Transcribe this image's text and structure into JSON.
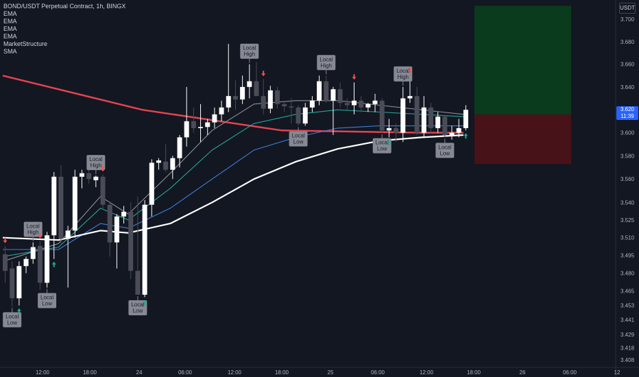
{
  "legend": {
    "title": "BOND/USDT Perpetual Contract, 1h, BINGX",
    "indicators": [
      "EMA",
      "EMA",
      "EMA",
      "EMA",
      "MarketStructure",
      "SMA"
    ]
  },
  "price_axis": {
    "unit": "USDT",
    "last_price": "3.620",
    "countdown": "11:39"
  },
  "colors": {
    "background": "#131722",
    "bull_candle": "#ffffff",
    "bear_candle": "#4a4c57",
    "sma": "#e5434f",
    "ema_fast": "#8f9199",
    "ema_mid": "#26a69a",
    "ema_slow": "#3f7fd6",
    "ema_slowest": "#ffffff",
    "take_profit_zone": "#0a3d1c",
    "stop_loss_zone": "#4a1218",
    "arrow_up": "#26a69a",
    "arrow_down": "#ef5350",
    "label_bg": "#868993"
  },
  "chart_data": {
    "type": "candlestick",
    "title": "BOND/USDT Perpetual Contract, 1h, BINGX",
    "y_ticks": [
      "3.700",
      "3.680",
      "3.660",
      "3.640",
      "3.620",
      "3.600",
      "3.580",
      "3.560",
      "3.540",
      "3.525",
      "3.510",
      "3.495",
      "3.480",
      "3.465",
      "3.453",
      "3.441",
      "3.429",
      "3.418",
      "3.408"
    ],
    "x_ticks": [
      "12:00",
      "18:00",
      "24",
      "06:00",
      "12:00",
      "18:00",
      "25",
      "06:00",
      "12:00",
      "18:00",
      "26",
      "06:00",
      "12"
    ],
    "y_scale": "log",
    "grid": false,
    "candles": [
      {
        "o": 3.496,
        "h": 3.503,
        "l": 3.472,
        "c": 3.482
      },
      {
        "o": 3.484,
        "h": 3.49,
        "l": 3.452,
        "c": 3.459
      },
      {
        "o": 3.459,
        "h": 3.49,
        "l": 3.453,
        "c": 3.486
      },
      {
        "o": 3.486,
        "h": 3.494,
        "l": 3.48,
        "c": 3.492
      },
      {
        "o": 3.492,
        "h": 3.506,
        "l": 3.488,
        "c": 3.502
      },
      {
        "o": 3.503,
        "h": 3.507,
        "l": 3.466,
        "c": 3.472
      },
      {
        "o": 3.472,
        "h": 3.515,
        "l": 3.468,
        "c": 3.512
      },
      {
        "o": 3.512,
        "h": 3.566,
        "l": 3.492,
        "c": 3.562
      },
      {
        "o": 3.562,
        "h": 3.572,
        "l": 3.505,
        "c": 3.509
      },
      {
        "o": 3.509,
        "h": 3.52,
        "l": 3.468,
        "c": 3.516
      },
      {
        "o": 3.516,
        "h": 3.568,
        "l": 3.51,
        "c": 3.562
      },
      {
        "o": 3.562,
        "h": 3.568,
        "l": 3.552,
        "c": 3.565
      },
      {
        "o": 3.565,
        "h": 3.572,
        "l": 3.556,
        "c": 3.56
      },
      {
        "o": 3.559,
        "h": 3.563,
        "l": 3.553,
        "c": 3.562
      },
      {
        "o": 3.562,
        "h": 3.564,
        "l": 3.534,
        "c": 3.538
      },
      {
        "o": 3.538,
        "h": 3.54,
        "l": 3.494,
        "c": 3.506
      },
      {
        "o": 3.506,
        "h": 3.53,
        "l": 3.484,
        "c": 3.528
      },
      {
        "o": 3.528,
        "h": 3.537,
        "l": 3.522,
        "c": 3.532
      },
      {
        "o": 3.532,
        "h": 3.54,
        "l": 3.475,
        "c": 3.482
      },
      {
        "o": 3.482,
        "h": 3.545,
        "l": 3.462,
        "c": 3.462
      },
      {
        "o": 3.462,
        "h": 3.542,
        "l": 3.46,
        "c": 3.538
      },
      {
        "o": 3.538,
        "h": 3.577,
        "l": 3.528,
        "c": 3.574
      },
      {
        "o": 3.574,
        "h": 3.578,
        "l": 3.568,
        "c": 3.576
      },
      {
        "o": 3.575,
        "h": 3.59,
        "l": 3.566,
        "c": 3.568
      },
      {
        "o": 3.568,
        "h": 3.58,
        "l": 3.56,
        "c": 3.578
      },
      {
        "o": 3.578,
        "h": 3.598,
        "l": 3.57,
        "c": 3.596
      },
      {
        "o": 3.596,
        "h": 3.64,
        "l": 3.588,
        "c": 3.61
      },
      {
        "o": 3.61,
        "h": 3.622,
        "l": 3.6,
        "c": 3.604
      },
      {
        "o": 3.604,
        "h": 3.625,
        "l": 3.592,
        "c": 3.605
      },
      {
        "o": 3.605,
        "h": 3.612,
        "l": 3.598,
        "c": 3.609
      },
      {
        "o": 3.609,
        "h": 3.622,
        "l": 3.604,
        "c": 3.616
      },
      {
        "o": 3.616,
        "h": 3.628,
        "l": 3.61,
        "c": 3.622
      },
      {
        "o": 3.622,
        "h": 3.678,
        "l": 3.618,
        "c": 3.632
      },
      {
        "o": 3.632,
        "h": 3.646,
        "l": 3.62,
        "c": 3.629
      },
      {
        "o": 3.629,
        "h": 3.65,
        "l": 3.625,
        "c": 3.64
      },
      {
        "o": 3.64,
        "h": 3.66,
        "l": 3.63,
        "c": 3.645
      },
      {
        "o": 3.645,
        "h": 3.662,
        "l": 3.632,
        "c": 3.632
      },
      {
        "o": 3.632,
        "h": 3.647,
        "l": 3.616,
        "c": 3.621
      },
      {
        "o": 3.621,
        "h": 3.641,
        "l": 3.617,
        "c": 3.637
      },
      {
        "o": 3.637,
        "h": 3.64,
        "l": 3.621,
        "c": 3.625
      },
      {
        "o": 3.625,
        "h": 3.628,
        "l": 3.618,
        "c": 3.623
      },
      {
        "o": 3.623,
        "h": 3.63,
        "l": 3.608,
        "c": 3.622
      },
      {
        "o": 3.622,
        "h": 3.624,
        "l": 3.606,
        "c": 3.608
      },
      {
        "o": 3.608,
        "h": 3.626,
        "l": 3.606,
        "c": 3.622
      },
      {
        "o": 3.622,
        "h": 3.632,
        "l": 3.618,
        "c": 3.628
      },
      {
        "o": 3.628,
        "h": 3.65,
        "l": 3.624,
        "c": 3.645
      },
      {
        "o": 3.645,
        "h": 3.65,
        "l": 3.626,
        "c": 3.628
      },
      {
        "o": 3.628,
        "h": 3.64,
        "l": 3.598,
        "c": 3.638
      },
      {
        "o": 3.638,
        "h": 3.644,
        "l": 3.622,
        "c": 3.626
      },
      {
        "o": 3.626,
        "h": 3.63,
        "l": 3.62,
        "c": 3.624
      },
      {
        "o": 3.624,
        "h": 3.644,
        "l": 3.616,
        "c": 3.628
      },
      {
        "o": 3.628,
        "h": 3.632,
        "l": 3.618,
        "c": 3.622
      },
      {
        "o": 3.622,
        "h": 3.626,
        "l": 3.618,
        "c": 3.625
      },
      {
        "o": 3.625,
        "h": 3.634,
        "l": 3.618,
        "c": 3.628
      },
      {
        "o": 3.628,
        "h": 3.63,
        "l": 3.6,
        "c": 3.602
      },
      {
        "o": 3.602,
        "h": 3.612,
        "l": 3.596,
        "c": 3.604
      },
      {
        "o": 3.604,
        "h": 3.608,
        "l": 3.592,
        "c": 3.6
      },
      {
        "o": 3.6,
        "h": 3.64,
        "l": 3.592,
        "c": 3.63
      },
      {
        "o": 3.63,
        "h": 3.65,
        "l": 3.626,
        "c": 3.632
      },
      {
        "o": 3.632,
        "h": 3.64,
        "l": 3.598,
        "c": 3.6
      },
      {
        "o": 3.6,
        "h": 3.632,
        "l": 3.596,
        "c": 3.622
      },
      {
        "o": 3.622,
        "h": 3.626,
        "l": 3.6,
        "c": 3.604
      },
      {
        "o": 3.604,
        "h": 3.618,
        "l": 3.6,
        "c": 3.614
      },
      {
        "o": 3.614,
        "h": 3.615,
        "l": 3.596,
        "c": 3.598
      },
      {
        "o": 3.598,
        "h": 3.606,
        "l": 3.594,
        "c": 3.6
      },
      {
        "o": 3.6,
        "h": 3.612,
        "l": 3.596,
        "c": 3.604
      },
      {
        "o": 3.604,
        "h": 3.624,
        "l": 3.602,
        "c": 3.62
      }
    ],
    "moving_averages": [
      {
        "name": "SMA",
        "color": "#e5434f",
        "points": [
          [
            0,
            3.65
          ],
          [
            20,
            3.62
          ],
          [
            40,
            3.602
          ],
          [
            60,
            3.6
          ],
          [
            66,
            3.6
          ]
        ]
      },
      {
        "name": "EMA",
        "color": "#8f9199",
        "points": [
          [
            0,
            3.49
          ],
          [
            8,
            3.505
          ],
          [
            14,
            3.545
          ],
          [
            18,
            3.53
          ],
          [
            24,
            3.565
          ],
          [
            30,
            3.602
          ],
          [
            36,
            3.625
          ],
          [
            42,
            3.628
          ],
          [
            48,
            3.628
          ],
          [
            54,
            3.624
          ],
          [
            60,
            3.62
          ],
          [
            66,
            3.616
          ]
        ]
      },
      {
        "name": "EMA",
        "color": "#26a69a",
        "points": [
          [
            0,
            3.494
          ],
          [
            8,
            3.502
          ],
          [
            14,
            3.535
          ],
          [
            18,
            3.525
          ],
          [
            24,
            3.552
          ],
          [
            30,
            3.585
          ],
          [
            36,
            3.608
          ],
          [
            42,
            3.616
          ],
          [
            48,
            3.62
          ],
          [
            54,
            3.618
          ],
          [
            60,
            3.616
          ],
          [
            66,
            3.614
          ]
        ]
      },
      {
        "name": "EMA",
        "color": "#3f7fd6",
        "points": [
          [
            0,
            3.5
          ],
          [
            8,
            3.5
          ],
          [
            14,
            3.522
          ],
          [
            18,
            3.518
          ],
          [
            24,
            3.535
          ],
          [
            30,
            3.56
          ],
          [
            36,
            3.585
          ],
          [
            42,
            3.596
          ],
          [
            48,
            3.604
          ],
          [
            54,
            3.606
          ],
          [
            60,
            3.606
          ],
          [
            66,
            3.606
          ]
        ]
      },
      {
        "name": "EMA",
        "color": "#ffffff",
        "points": [
          [
            0,
            3.51
          ],
          [
            8,
            3.508
          ],
          [
            14,
            3.516
          ],
          [
            18,
            3.514
          ],
          [
            24,
            3.522
          ],
          [
            30,
            3.54
          ],
          [
            36,
            3.56
          ],
          [
            42,
            3.575
          ],
          [
            48,
            3.586
          ],
          [
            54,
            3.593
          ],
          [
            60,
            3.596
          ],
          [
            66,
            3.598
          ]
        ]
      }
    ],
    "market_structure": [
      {
        "label": "Local High",
        "index": 4,
        "kind": "high"
      },
      {
        "label": "Local Low",
        "index": 1,
        "kind": "low"
      },
      {
        "label": "Local Low",
        "index": 6,
        "kind": "low"
      },
      {
        "label": "Local High",
        "index": 13,
        "kind": "high"
      },
      {
        "label": "Local Low",
        "index": 19,
        "kind": "low"
      },
      {
        "label": "Local High",
        "index": 35,
        "kind": "high"
      },
      {
        "label": "Local Low",
        "index": 42,
        "kind": "low"
      },
      {
        "label": "Local High",
        "index": 46,
        "kind": "high"
      },
      {
        "label": "Local Low",
        "index": 54,
        "kind": "low"
      },
      {
        "label": "Local High",
        "index": 57,
        "kind": "high"
      },
      {
        "label": "Local Low",
        "index": 63,
        "kind": "low"
      }
    ],
    "arrows": [
      {
        "index": 0,
        "dir": "down"
      },
      {
        "index": 5,
        "dir": "down"
      },
      {
        "index": 7,
        "dir": "up"
      },
      {
        "index": 2,
        "dir": "up"
      },
      {
        "index": 14,
        "dir": "down"
      },
      {
        "index": 20,
        "dir": "up"
      },
      {
        "index": 37,
        "dir": "down"
      },
      {
        "index": 50,
        "dir": "down"
      },
      {
        "index": 58,
        "dir": "down"
      },
      {
        "index": 55,
        "dir": "up"
      },
      {
        "index": 66,
        "dir": "up"
      }
    ],
    "position": {
      "entry": 3.616,
      "take_profit": 3.712,
      "stop_loss": 3.573
    }
  }
}
